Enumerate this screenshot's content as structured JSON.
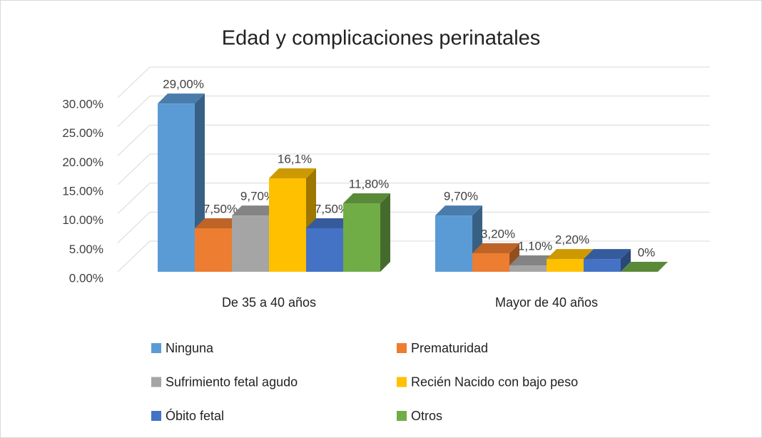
{
  "chart_data": {
    "type": "bar3d",
    "title": "Edad y complicaciones perinatales",
    "categories": [
      "De 35 a 40 años",
      "Mayor de 40 años"
    ],
    "series": [
      {
        "name": "Ninguna",
        "color": "#5b9bd5",
        "values": [
          29,
          9.7
        ],
        "value_labels": [
          "29,00%",
          "9,70%"
        ]
      },
      {
        "name": "Prematuridad",
        "color": "#ed7d31",
        "values": [
          7.5,
          3.2
        ],
        "value_labels": [
          "7,50%",
          "3,20%"
        ]
      },
      {
        "name": "Sufrimiento fetal agudo",
        "color": "#a5a5a5",
        "values": [
          9.7,
          1.1
        ],
        "value_labels": [
          "9,70%",
          "1,10%"
        ]
      },
      {
        "name": "Recién Nacido con bajo peso",
        "color": "#ffc000",
        "values": [
          16.1,
          2.2
        ],
        "value_labels": [
          "16,1%",
          "2,20%"
        ]
      },
      {
        "name": "Óbito fetal",
        "color": "#4472c4",
        "values": [
          7.5,
          2.2
        ],
        "value_labels": [
          "7,50%",
          null
        ]
      },
      {
        "name": "Otros",
        "color": "#70ad47",
        "values": [
          11.8,
          0
        ],
        "value_labels": [
          "11,80%",
          "0%"
        ]
      }
    ],
    "ylim": [
      0,
      30
    ],
    "yticks": [
      {
        "value": 0,
        "label": "0.00%"
      },
      {
        "value": 5,
        "label": "5.00%"
      },
      {
        "value": 10,
        "label": "10.00%"
      },
      {
        "value": 15,
        "label": "15.00%"
      },
      {
        "value": 20,
        "label": "20.00%"
      },
      {
        "value": 25,
        "label": "25.00%"
      },
      {
        "value": 30,
        "label": "30.00%"
      }
    ],
    "grid": true,
    "legend": "bottom"
  }
}
